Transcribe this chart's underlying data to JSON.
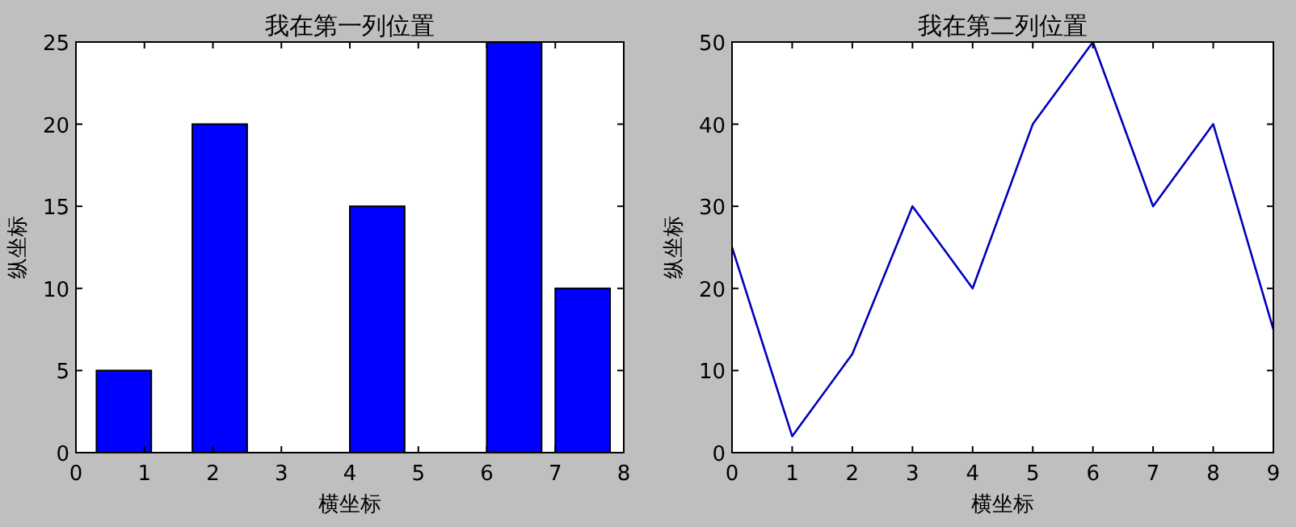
{
  "chart_data": [
    {
      "type": "bar",
      "title": "我在第一列位置",
      "xlabel": "横坐标",
      "ylabel": "纵坐标",
      "x": [
        0.7,
        2.1,
        4.4,
        6.4,
        7.4
      ],
      "values": [
        5,
        20,
        15,
        25,
        10
      ],
      "color": "#0000ff",
      "xlim": [
        0,
        8
      ],
      "xticks": [
        0,
        1,
        2,
        3,
        4,
        5,
        6,
        7,
        8
      ],
      "ylim": [
        0,
        25
      ],
      "yticks": [
        0,
        5,
        10,
        15,
        20,
        25
      ],
      "grid": false
    },
    {
      "type": "line",
      "title": "我在第二列位置",
      "xlabel": "横坐标",
      "ylabel": "纵坐标",
      "x": [
        0,
        1,
        2,
        3,
        4,
        5,
        6,
        7,
        8,
        9
      ],
      "values": [
        25,
        2,
        12,
        30,
        20,
        40,
        50,
        30,
        40,
        15
      ],
      "color": "#0000bf",
      "xlim": [
        0,
        9
      ],
      "xticks": [
        0,
        1,
        2,
        3,
        4,
        5,
        6,
        7,
        8,
        9
      ],
      "ylim": [
        0,
        50
      ],
      "yticks": [
        0,
        10,
        20,
        30,
        40,
        50
      ],
      "grid": false,
      "marker": "none",
      "line_style": "solid"
    }
  ]
}
